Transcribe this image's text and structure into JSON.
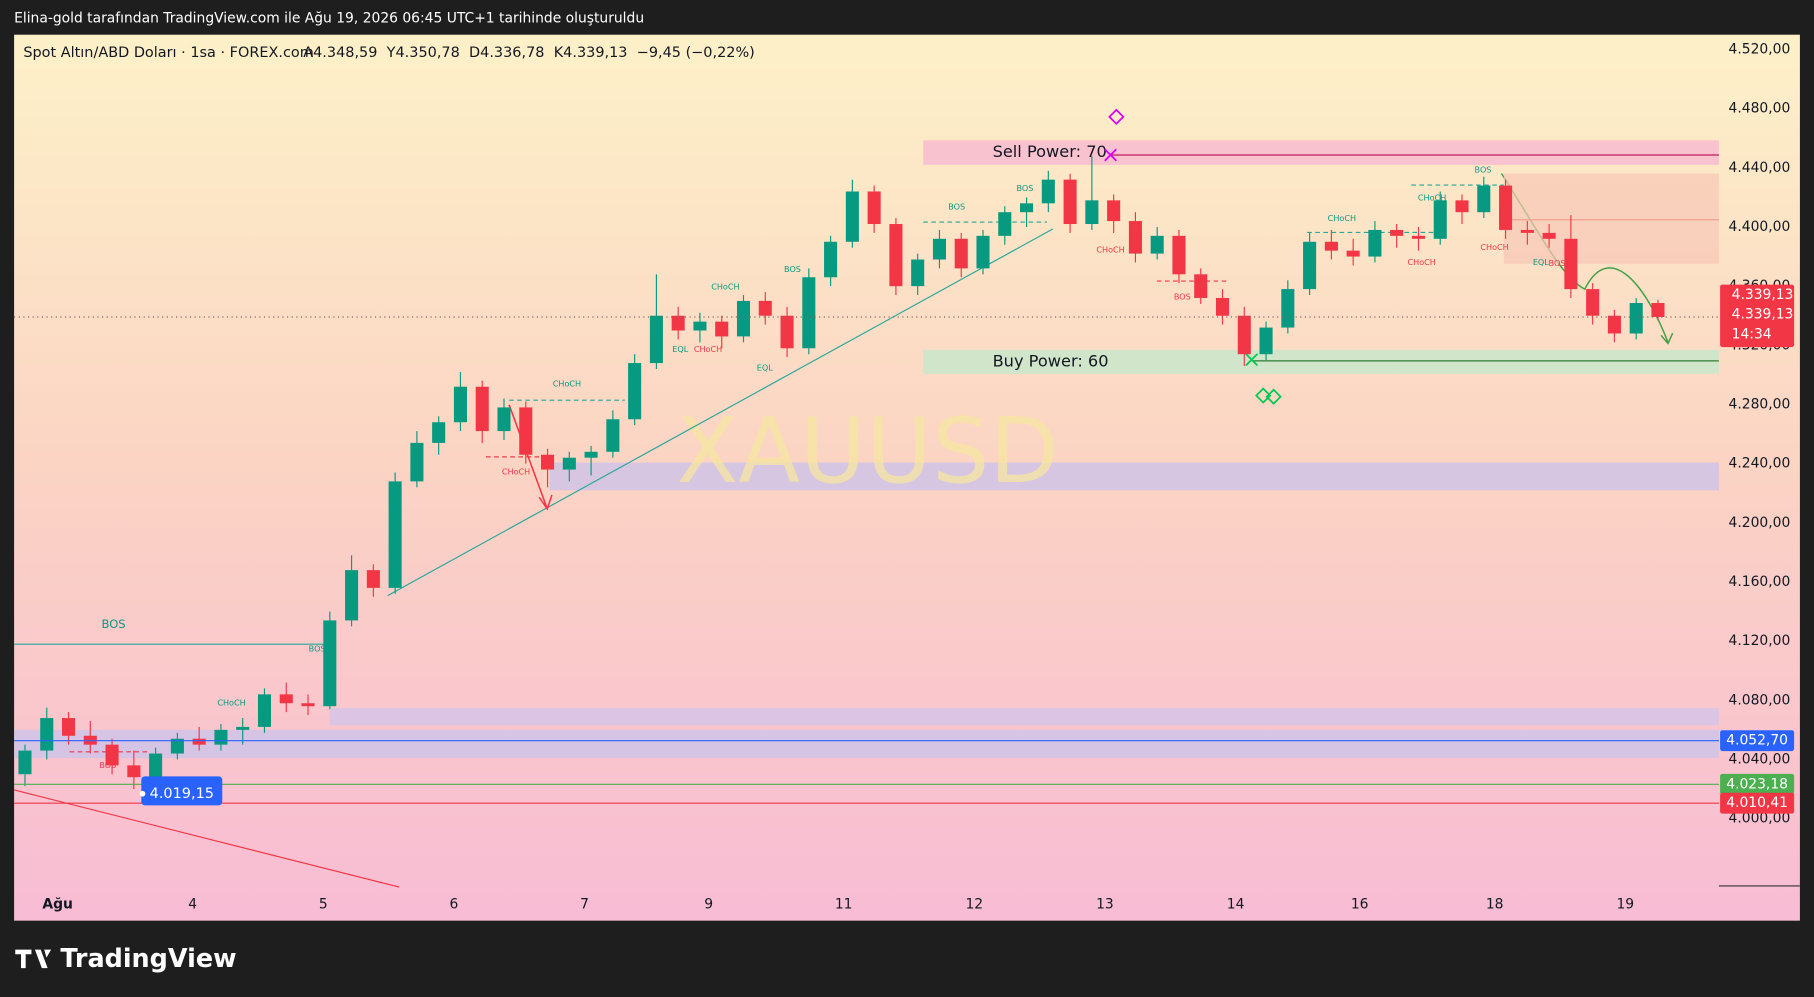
{
  "header": {
    "credit": "Elina-gold tarafından TradingView.com ile Ağu 19, 2026 06:45 UTC+1 tarihinde oluşturuldu"
  },
  "footer": {
    "brand": "TradingView"
  },
  "chart_data": {
    "type": "candlestick",
    "title": "Spot Altın/ABD Doları · 1sa · FOREX.com",
    "ohlc_labels": [
      "A4.348,59",
      "Y4.350,78",
      "D4.336,78",
      "K4.339,13"
    ],
    "change_label": "−9,45 (−0,22%)",
    "watermark": "XAUUSD",
    "up_color": "#089981",
    "down_color": "#f23645",
    "open": [
      4030,
      4046,
      4068,
      4056,
      4050,
      4036,
      4028,
      4044,
      4054,
      4050,
      4060,
      4062,
      4084,
      4078,
      4076,
      4134,
      4168,
      4156,
      4228,
      4254,
      4268,
      4292,
      4262,
      4278,
      4246,
      4236,
      4244,
      4248,
      4270,
      4308,
      4340,
      4330,
      4336,
      4326,
      4350,
      4340,
      4318,
      4366,
      4390,
      4424,
      4402,
      4360,
      4378,
      4392,
      4372,
      4394,
      4410,
      4416,
      4432,
      4402,
      4418,
      4404,
      4382,
      4394,
      4368,
      4352,
      4340,
      4314,
      4332,
      4358,
      4390,
      4384,
      4380,
      4398,
      4394,
      4392,
      4418,
      4410,
      4428,
      4398,
      4396,
      4392,
      4358,
      4340,
      4328,
      4348.59
    ],
    "high": [
      4050,
      4075,
      4072,
      4066,
      4054,
      4046,
      4048,
      4058,
      4062,
      4064,
      4068,
      4088,
      4092,
      4084,
      4140,
      4178,
      4172,
      4234,
      4262,
      4272,
      4302,
      4296,
      4284,
      4282,
      4250,
      4248,
      4252,
      4276,
      4314,
      4368,
      4346,
      4342,
      4340,
      4354,
      4356,
      4346,
      4372,
      4394,
      4432,
      4428,
      4406,
      4382,
      4398,
      4396,
      4398,
      4414,
      4420,
      4438,
      4436,
      4448,
      4422,
      4410,
      4400,
      4398,
      4372,
      4358,
      4346,
      4336,
      4364,
      4396,
      4398,
      4392,
      4404,
      4402,
      4400,
      4424,
      4422,
      4434,
      4432,
      4404,
      4402,
      4408,
      4362,
      4344,
      4352,
      4350.78
    ],
    "low": [
      4022,
      4040,
      4050,
      4044,
      4030,
      4020,
      4024,
      4040,
      4046,
      4046,
      4050,
      4058,
      4072,
      4070,
      4074,
      4130,
      4150,
      4152,
      4224,
      4246,
      4262,
      4254,
      4256,
      4240,
      4224,
      4228,
      4232,
      4244,
      4266,
      4304,
      4324,
      4322,
      4318,
      4322,
      4334,
      4312,
      4314,
      4360,
      4386,
      4396,
      4354,
      4354,
      4372,
      4366,
      4368,
      4388,
      4400,
      4410,
      4396,
      4398,
      4396,
      4376,
      4378,
      4362,
      4348,
      4334,
      4306,
      4310,
      4328,
      4354,
      4378,
      4374,
      4376,
      4386,
      4384,
      4388,
      4402,
      4406,
      4392,
      4388,
      4386,
      4352,
      4334,
      4322,
      4324,
      4336.78
    ],
    "close": [
      4046,
      4068,
      4056,
      4050,
      4036,
      4028,
      4044,
      4054,
      4050,
      4060,
      4062,
      4084,
      4078,
      4076,
      4134,
      4168,
      4156,
      4228,
      4254,
      4268,
      4292,
      4262,
      4278,
      4246,
      4236,
      4244,
      4248,
      4270,
      4308,
      4340,
      4330,
      4336,
      4326,
      4350,
      4340,
      4318,
      4366,
      4390,
      4424,
      4402,
      4360,
      4378,
      4392,
      4372,
      4394,
      4410,
      4416,
      4432,
      4402,
      4418,
      4404,
      4382,
      4394,
      4368,
      4352,
      4340,
      4314,
      4332,
      4358,
      4390,
      4384,
      4380,
      4398,
      4394,
      4392,
      4418,
      4410,
      4428,
      4398,
      4396,
      4392,
      4358,
      4340,
      4328,
      4348.59,
      4339.13
    ],
    "xlim": [
      -0.5,
      77.8
    ],
    "xticks": [
      {
        "value": 1.5,
        "label": "Ağu"
      },
      {
        "value": 7.7,
        "label": "4"
      },
      {
        "value": 13.7,
        "label": "5"
      },
      {
        "value": 19.7,
        "label": "6"
      },
      {
        "value": 25.7,
        "label": "7"
      },
      {
        "value": 31.4,
        "label": "9"
      },
      {
        "value": 37.6,
        "label": "11"
      },
      {
        "value": 43.6,
        "label": "12"
      },
      {
        "value": 49.6,
        "label": "13"
      },
      {
        "value": 55.6,
        "label": "14"
      },
      {
        "value": 61.3,
        "label": "16"
      },
      {
        "value": 67.5,
        "label": "18"
      },
      {
        "value": 73.5,
        "label": "19"
      }
    ],
    "ylim": [
      3931,
      4530
    ],
    "yticks": [
      {
        "value": 4000,
        "label": "4.000,00"
      },
      {
        "value": 4040,
        "label": "4.040,00"
      },
      {
        "value": 4080,
        "label": "4.080,00"
      },
      {
        "value": 4120,
        "label": "4.120,00"
      },
      {
        "value": 4160,
        "label": "4.160,00"
      },
      {
        "value": 4200,
        "label": "4.200,00"
      },
      {
        "value": 4240,
        "label": "4.240,00"
      },
      {
        "value": 4280,
        "label": "4.280,00"
      },
      {
        "value": 4320,
        "label": "4.320,00"
      },
      {
        "value": 4360,
        "label": "4.360,00"
      },
      {
        "value": 4400,
        "label": "4.400,00"
      },
      {
        "value": 4440,
        "label": "4.440,00"
      },
      {
        "value": 4480,
        "label": "4.480,00"
      },
      {
        "value": 4520,
        "label": "4.520,00"
      }
    ],
    "grid": false,
    "zones": [
      {
        "label": "Sell Power: 70",
        "from": 4442,
        "to": 4458.6,
        "color": "#f8bbd0"
      },
      {
        "label": "Buy Power: 60",
        "from": 4300.7,
        "to": 4317,
        "color": "#c8e6c9"
      },
      {
        "from": 4222,
        "to": 4240.7,
        "color": "#cfc3e6"
      },
      {
        "from": 4063,
        "to": 4074.7,
        "color": "#d6c4e8"
      },
      {
        "from": 4041,
        "to": 4060,
        "color": "#cfc3e6"
      }
    ],
    "hlines": [
      {
        "value": 4052.7,
        "label": "4.052,70",
        "color": "#2962ff"
      },
      {
        "value": 4023.18,
        "label": "4.023,18",
        "color": "#4caf50"
      },
      {
        "value": 4010.41,
        "label": "4.010,41",
        "color": "#f23645"
      }
    ],
    "current_price": {
      "value": 4339.13,
      "labels": [
        "4.339,13",
        "4.339,13",
        "14:34"
      ],
      "color": "#f23645"
    },
    "marker": {
      "value": 4019.15,
      "label": "4.019,15",
      "color": "#2962ff"
    },
    "annotations": [
      "BOS",
      "BOS",
      "CHoCH",
      "BOS",
      "CHoCH",
      "CHoCH",
      "CHoCH",
      "BOS",
      "EQL",
      "CHoCH",
      "EQL",
      "BOS",
      "BOS",
      "CHoCH",
      "BOS",
      "CHoCH",
      "CHoCH",
      "BOS",
      "CHoCH",
      "CHoCH",
      "EQL",
      "BOS"
    ]
  }
}
